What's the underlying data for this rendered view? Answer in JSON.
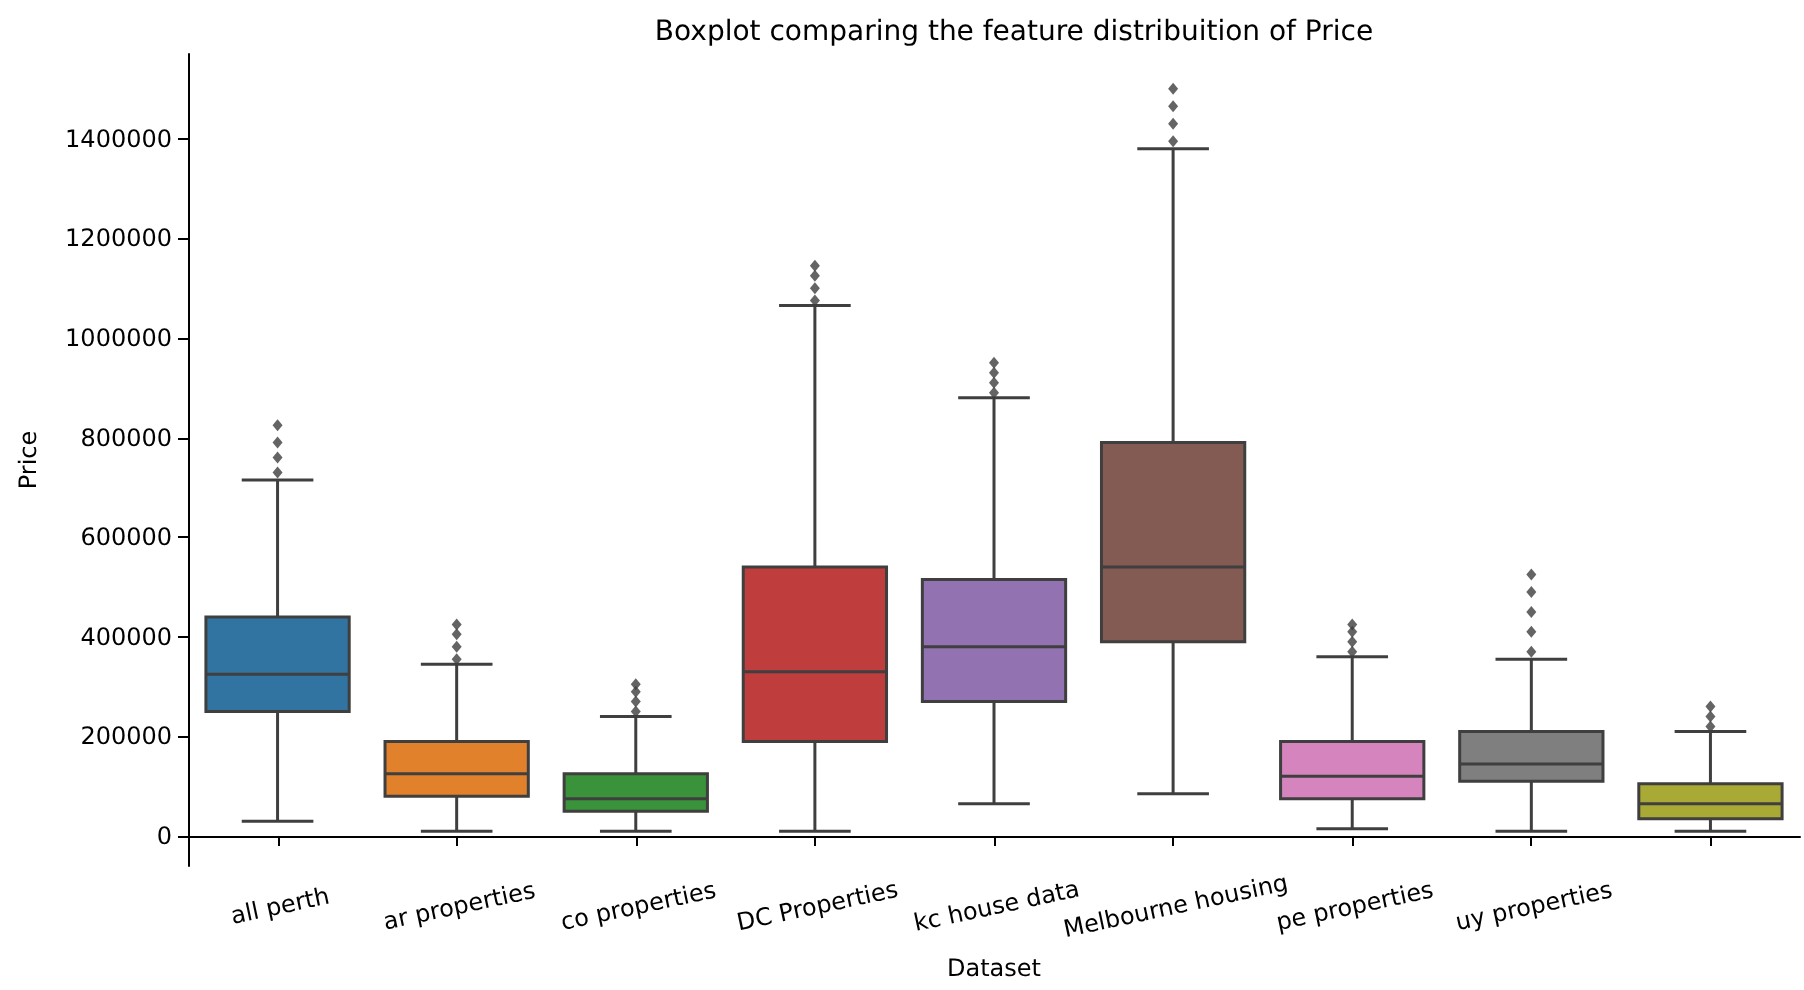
{
  "chart_data": {
    "type": "box",
    "title": "Boxplot comparing the feature distribuition of Price",
    "xlabel": "Dataset",
    "ylabel": "Price",
    "categories": [
      "all perth",
      "ar properties",
      "co properties",
      "DC Properties",
      "kc house data",
      "Melbourne housing",
      "pe properties",
      "uy properties",
      null
    ],
    "series": [
      {
        "colors": [
          "#3274a1",
          "#e1812c",
          "#3a923a",
          "#c03d3e",
          "#9372b2",
          "#845b53",
          "#d684bd",
          "#7f7f7f",
          "#a9aa35"
        ],
        "boxes": [
          {
            "low": 30000,
            "q1": 250000,
            "median": 325000,
            "q3": 440000,
            "high": 715000,
            "outliers": [
              730000,
              760000,
              790000,
              825000
            ]
          },
          {
            "low": 10000,
            "q1": 80000,
            "median": 125000,
            "q3": 190000,
            "high": 345000,
            "outliers": [
              355000,
              380000,
              405000,
              425000
            ]
          },
          {
            "low": 10000,
            "q1": 50000,
            "median": 75000,
            "q3": 125000,
            "high": 240000,
            "outliers": [
              250000,
              270000,
              290000,
              305000
            ]
          },
          {
            "low": 10000,
            "q1": 190000,
            "median": 330000,
            "q3": 540000,
            "high": 1065000,
            "outliers": [
              1075000,
              1100000,
              1125000,
              1145000
            ]
          },
          {
            "low": 65000,
            "q1": 270000,
            "median": 380000,
            "q3": 515000,
            "high": 880000,
            "outliers": [
              890000,
              910000,
              930000,
              950000
            ]
          },
          {
            "low": 85000,
            "q1": 390000,
            "median": 540000,
            "q3": 790000,
            "high": 1380000,
            "outliers": [
              1395000,
              1430000,
              1465000,
              1500000
            ]
          },
          {
            "low": 15000,
            "q1": 75000,
            "median": 120000,
            "q3": 190000,
            "high": 360000,
            "outliers": [
              370000,
              390000,
              410000,
              425000
            ]
          },
          {
            "low": 10000,
            "q1": 110000,
            "median": 145000,
            "q3": 210000,
            "high": 355000,
            "outliers": [
              370000,
              410000,
              450000,
              490000,
              525000
            ]
          },
          {
            "low": 10000,
            "q1": 35000,
            "median": 65000,
            "q3": 105000,
            "high": 210000,
            "outliers": [
              220000,
              240000,
              260000
            ]
          }
        ]
      }
    ],
    "marker": "diamond",
    "ylim": [
      -60000,
      1570000
    ],
    "yticks": [
      0,
      200000,
      400000,
      600000,
      800000,
      1000000,
      1200000,
      1400000
    ]
  }
}
